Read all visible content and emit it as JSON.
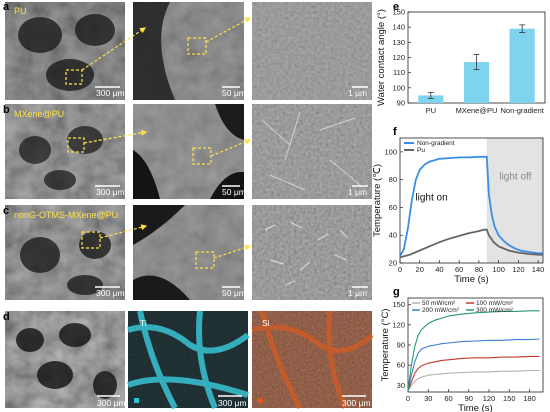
{
  "panels": {
    "a": {
      "letter": "a",
      "label": "PU",
      "scales": [
        "300 μm",
        "50 μm",
        "1 μm"
      ]
    },
    "b": {
      "letter": "b",
      "label": "MXene@PU",
      "scales": [
        "300 μm",
        "50 μm",
        "1 μm"
      ]
    },
    "c": {
      "letter": "c",
      "label": "nonG-OTMS-MXene@PU",
      "scales": [
        "300 μm",
        "50 μm",
        "1 μm"
      ]
    },
    "d": {
      "letter": "d",
      "element_labels": [
        "Ti",
        "Si"
      ],
      "scales": [
        "300 μm",
        "300 μm",
        "300 μm"
      ]
    }
  },
  "colors": {
    "highlight_yellow": "#ffe24a",
    "ti_cyan": "#27c6d9",
    "si_orange": "#c8501a",
    "bar_blue": "#7ed3ef",
    "ng_blue": "#3a8ee6",
    "pu_gray": "#666666",
    "light_off_shade": "#e3e3e3"
  },
  "chart_data": [
    {
      "id": "e",
      "letter": "e",
      "type": "bar",
      "categories": [
        "PU",
        "MXene@PU",
        "Non-gradient"
      ],
      "values": [
        95,
        117,
        139
      ],
      "errors": [
        2,
        5,
        2.5
      ],
      "ylabel": "Water contact angle (°)",
      "ylim": [
        90,
        150
      ],
      "yticks": [
        "90",
        "100",
        "110",
        "120",
        "130",
        "140",
        "150"
      ]
    },
    {
      "id": "f",
      "letter": "f",
      "type": "line",
      "xlabel": "Time (s)",
      "ylabel": "Temperature (℃)",
      "xlim": [
        0,
        145
      ],
      "ylim": [
        20,
        110
      ],
      "xticks": [
        "0",
        "20",
        "40",
        "60",
        "80",
        "100",
        "120",
        "140"
      ],
      "yticks": [
        "20",
        "40",
        "60",
        "80",
        "100"
      ],
      "annotations": [
        "light on",
        "light off"
      ],
      "light_off_start": 88,
      "series": [
        {
          "name": "Non-gradient",
          "x": [
            0,
            4,
            8,
            12,
            16,
            20,
            25,
            30,
            35,
            40,
            50,
            60,
            70,
            80,
            88,
            90,
            93,
            96,
            100,
            105,
            110,
            115,
            120,
            125,
            130,
            135,
            140,
            145
          ],
          "y": [
            25,
            30,
            45,
            65,
            80,
            87,
            91,
            93,
            94,
            95,
            95.5,
            96,
            96,
            96.5,
            96.5,
            70,
            55,
            46,
            40,
            36,
            33,
            31,
            29.5,
            28.5,
            28,
            27.5,
            27,
            27
          ]
        },
        {
          "name": "Pu",
          "x": [
            0,
            10,
            20,
            30,
            40,
            50,
            60,
            70,
            80,
            85,
            88,
            90,
            95,
            100,
            110,
            120,
            130,
            140,
            145
          ],
          "y": [
            24,
            26,
            29,
            32,
            35,
            37.5,
            39.5,
            41.5,
            43,
            44,
            44,
            40,
            35,
            32,
            29,
            27.5,
            26.5,
            26,
            26
          ]
        }
      ]
    },
    {
      "id": "g",
      "letter": "g",
      "type": "line",
      "xlabel": "Time (s)",
      "ylabel": "Temperature (°C)",
      "xlim": [
        0,
        200
      ],
      "ylim": [
        20,
        160
      ],
      "xticks": [
        "0",
        "30",
        "60",
        "90",
        "120",
        "150",
        "180"
      ],
      "yticks": [
        "30",
        "60",
        "90",
        "120",
        "150"
      ],
      "series": [
        {
          "name": "50 mW/cm²",
          "color": "#b0b0b0",
          "x": [
            0,
            5,
            10,
            15,
            20,
            30,
            40,
            50,
            60,
            80,
            100,
            120,
            140,
            160,
            180,
            195
          ],
          "y": [
            22,
            30,
            36,
            40,
            42,
            45,
            46,
            47,
            48,
            49,
            50,
            50,
            51,
            51,
            52,
            52
          ]
        },
        {
          "name": "100 mW/cm²",
          "color": "#c0392b",
          "x": [
            0,
            5,
            10,
            15,
            20,
            30,
            40,
            50,
            60,
            80,
            100,
            120,
            140,
            160,
            180,
            195
          ],
          "y": [
            22,
            35,
            48,
            55,
            59,
            63,
            65,
            67,
            68,
            70,
            71,
            71,
            72,
            72,
            73,
            73
          ]
        },
        {
          "name": "200 mW/cm²",
          "color": "#3a7ed6",
          "x": [
            0,
            5,
            10,
            15,
            20,
            30,
            40,
            50,
            60,
            80,
            100,
            120,
            140,
            160,
            180,
            195
          ],
          "y": [
            22,
            45,
            65,
            78,
            84,
            88,
            90,
            92,
            93,
            95,
            96,
            97,
            97,
            98,
            98,
            99
          ]
        },
        {
          "name": "300 mW/cm²",
          "color": "#2a9a6a",
          "x": [
            0,
            5,
            10,
            15,
            20,
            30,
            40,
            50,
            60,
            80,
            100,
            120,
            140,
            160,
            180,
            195
          ],
          "y": [
            22,
            60,
            88,
            104,
            113,
            122,
            127,
            130,
            133,
            136,
            138,
            139,
            140,
            140,
            141,
            141
          ]
        }
      ]
    }
  ]
}
